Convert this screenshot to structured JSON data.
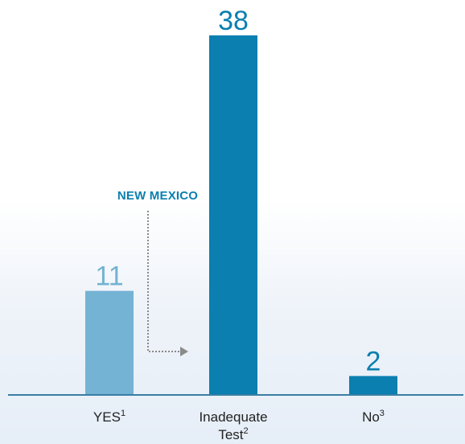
{
  "chart_data": {
    "type": "bar",
    "categories": [
      {
        "label_lines": [
          "YES"
        ],
        "sup": "1"
      },
      {
        "label_lines": [
          "Inadequate",
          "Test"
        ],
        "sup": "2"
      },
      {
        "label_lines": [
          "No"
        ],
        "sup": "3"
      }
    ],
    "values": [
      11,
      38,
      2
    ],
    "ylim": [
      0,
      38
    ],
    "grid": false,
    "legend": "none",
    "colors": {
      "bars": [
        "#74b3d3",
        "#0a7fb0",
        "#0a7fb0"
      ],
      "value_labels": [
        "#74b3d3",
        "#0a7fb0",
        "#0a7fb0"
      ],
      "baseline": "#3a7ea4",
      "annotation": "#0a7fb0",
      "arrow": "#8a8a8a"
    },
    "annotation": {
      "text": "NEW MEXICO",
      "points_to_category": 0
    }
  }
}
